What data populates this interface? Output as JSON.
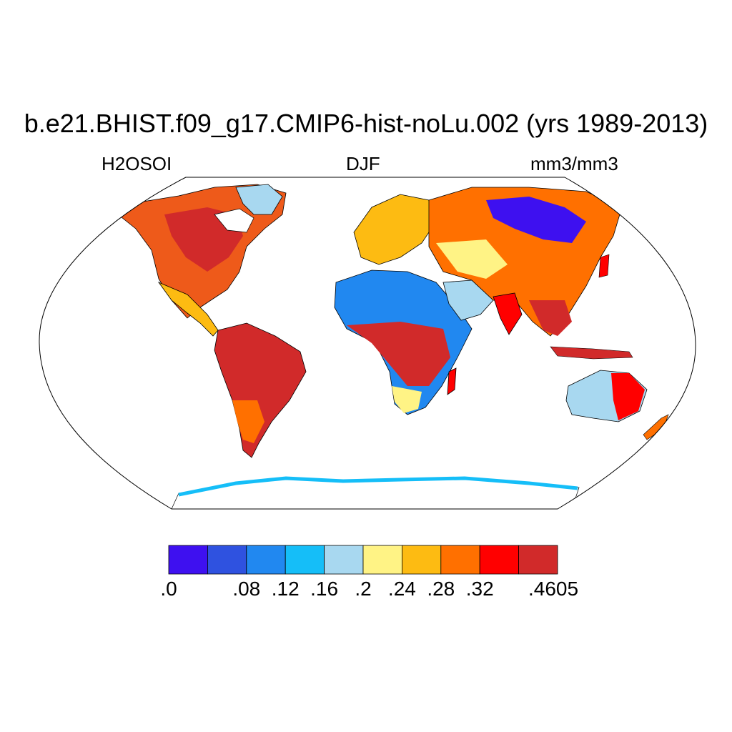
{
  "title": "b.e21.BHIST.f09_g17.CMIP6-hist-noLu.002 (yrs 1989-2013)",
  "left_label": "H2OSOI",
  "center_label": "DJF",
  "right_label": "mm3/mm3",
  "colorbar": {
    "colors": [
      "#3e10f0",
      "#2f52e0",
      "#2188f0",
      "#15bef8",
      "#a8d8f0",
      "#fff385",
      "#fdbb12",
      "#ff7000",
      "#ff0000",
      "#d12a2a"
    ],
    "tick_labels": [
      ".0",
      ".08",
      ".12",
      ".16",
      ".2",
      ".24",
      ".28",
      ".32",
      ".4605"
    ]
  },
  "map": {
    "projection": "Robinson",
    "ocean_color": "#ffffff",
    "coastline_color": "#000000"
  }
}
